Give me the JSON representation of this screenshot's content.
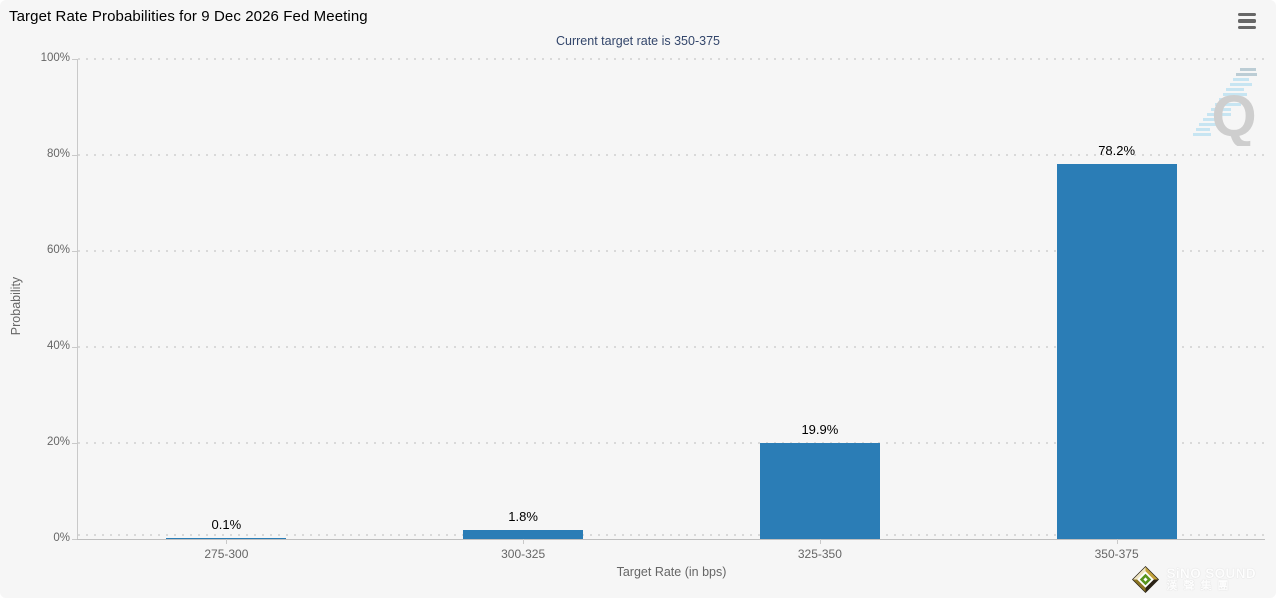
{
  "header": {
    "title": "Target Rate Probabilities for 9 Dec 2026 Fed Meeting",
    "menu_icon": "hamburger-menu"
  },
  "subtitle": "Current target rate is 350-375",
  "watermark": {
    "letter": "Q"
  },
  "footer_logo": {
    "brand_en": "SiNO SOUND",
    "brand_cn": "漢聲集團"
  },
  "chart_data": {
    "type": "bar",
    "title": "Target Rate Probabilities for 9 Dec 2026 Fed Meeting",
    "subtitle": "Current target rate is 350-375",
    "categories": [
      "275-300",
      "300-325",
      "325-350",
      "350-375"
    ],
    "values": [
      0.1,
      1.8,
      19.9,
      78.2
    ],
    "value_labels": [
      "0.1%",
      "1.8%",
      "19.9%",
      "78.2%"
    ],
    "xlabel": "Target Rate (in bps)",
    "ylabel": "Probability",
    "ylim": [
      0,
      100
    ],
    "ytick_labels": [
      "0%",
      "20%",
      "40%",
      "60%",
      "80%",
      "100%"
    ],
    "bar_color": "#2b7db6",
    "grid": "dotted horizontal gridlines",
    "legend": "none"
  }
}
